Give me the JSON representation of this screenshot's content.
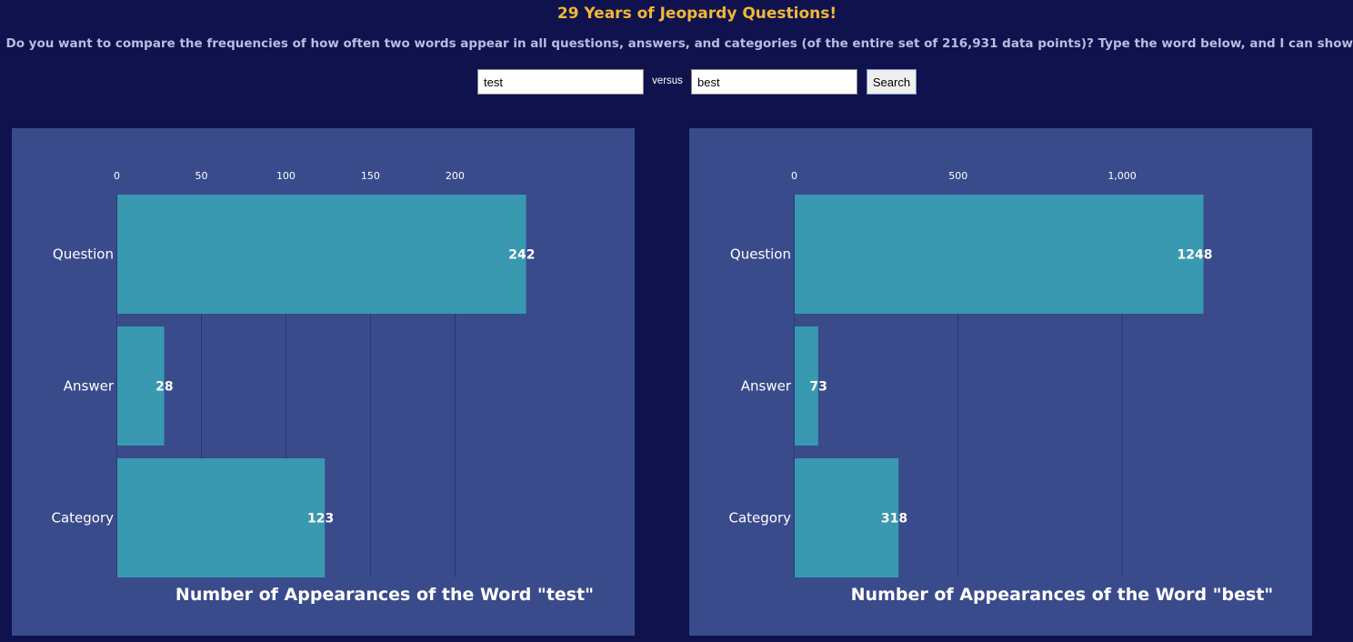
{
  "header": {
    "title": "29 Years of Jeopardy Questions!",
    "subtitle": "Do you want to compare the frequencies of how often two words appear in all questions, answers, and categories (of the entire set of 216,931 data points)? Type the word below, and I can show you!"
  },
  "search": {
    "word1_value": "test",
    "versus_label": "versus",
    "word2_value": "best",
    "button_label": "Search"
  },
  "colors": {
    "background": "#0f124d",
    "panel": "#3a4b8c",
    "bar": "#3899b0",
    "grid": "#2a3478",
    "title": "#f2b736"
  },
  "chart_data": [
    {
      "type": "bar",
      "orientation": "horizontal",
      "categories": [
        "Question",
        "Answer",
        "Category"
      ],
      "values": [
        242,
        28,
        123
      ],
      "xticks": [
        0,
        50,
        100,
        150,
        200
      ],
      "xtick_labels": [
        "0",
        "50",
        "100",
        "150",
        "200"
      ],
      "xlim": [
        0,
        242
      ],
      "xlabel": "Number of Appearances of the Word \"test\"",
      "grid": true,
      "x_axis_position": "top"
    },
    {
      "type": "bar",
      "orientation": "horizontal",
      "categories": [
        "Question",
        "Answer",
        "Category"
      ],
      "values": [
        1248,
        73,
        318
      ],
      "xticks": [
        0,
        500,
        1000
      ],
      "xtick_labels": [
        "0",
        "500",
        "1,000"
      ],
      "xlim": [
        0,
        1248
      ],
      "xlabel": "Number of Appearances of the Word \"best\"",
      "grid": true,
      "x_axis_position": "top"
    }
  ]
}
